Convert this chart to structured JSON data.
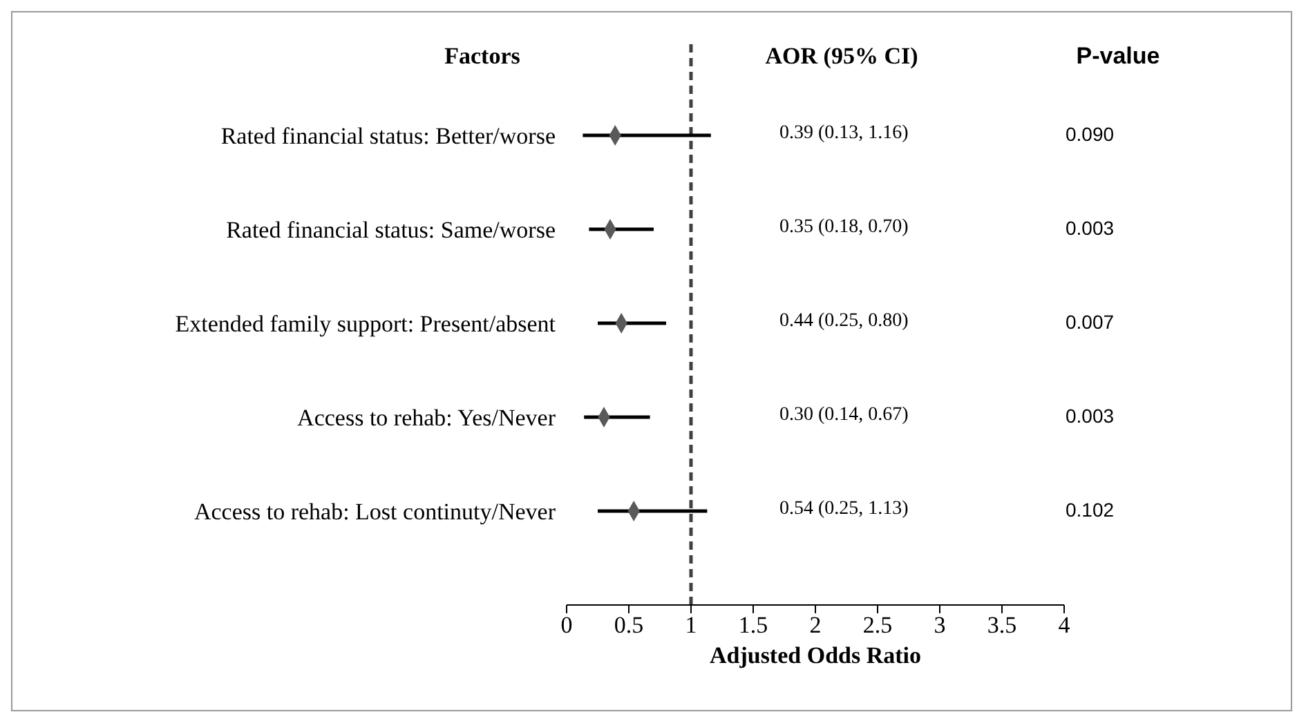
{
  "chart_data": {
    "type": "scatter",
    "orientation": "horizontal",
    "xlabel": "Adjusted Odds Ratio",
    "categories": [
      "Rated financial status: Better/worse",
      "Rated financial status: Same/worse",
      "Extended family support: Present/absent",
      "Access to rehab: Yes/Never",
      "Access to rehab: Lost continuty/Never"
    ],
    "series": [
      {
        "color": "#595959",
        "values": [
          0.39,
          0.35,
          0.44,
          0.3,
          0.54
        ],
        "errors": [
          [
            0.13,
            1.16
          ],
          [
            0.18,
            0.7
          ],
          [
            0.25,
            0.8
          ],
          [
            0.14,
            0.67
          ],
          [
            0.25,
            1.13
          ]
        ]
      }
    ],
    "xlim": [
      0,
      4
    ],
    "xticks": [
      0,
      0.5,
      1,
      1.5,
      2,
      2.5,
      3,
      3.5,
      4
    ],
    "ref_lines": [
      {
        "axis": "x",
        "value": 1,
        "color": "#404040",
        "line_style": "dashed"
      }
    ],
    "marker": "diamond",
    "annotations": [
      "Factors",
      "AOR (95% CI)",
      "P-value",
      "0.39 (0.13, 1.16)",
      "0.090",
      "0.35 (0.18, 0.70)",
      "0.003",
      "0.44 (0.25, 0.80)",
      "0.007",
      "0.30 (0.14, 0.67)",
      "0.003",
      "0.54 (0.25, 1.13)",
      "0.102"
    ]
  }
}
